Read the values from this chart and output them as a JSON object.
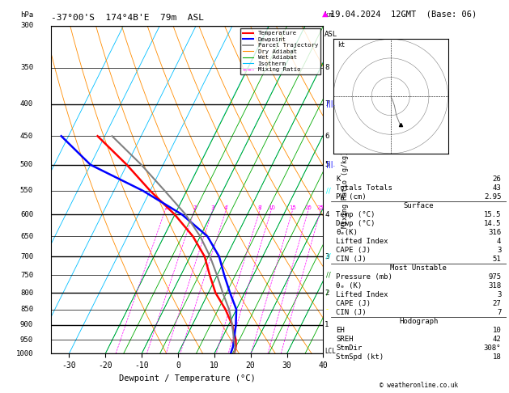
{
  "title_left": "-37°00'S  174°4B'E  79m  ASL",
  "title_right": "19.04.2024  12GMT  (Base: 06)",
  "xlabel": "Dewpoint / Temperature (°C)",
  "pressure_levels": [
    300,
    350,
    400,
    450,
    500,
    550,
    600,
    650,
    700,
    750,
    800,
    850,
    900,
    950,
    1000
  ],
  "temp_ticks": [
    -30,
    -20,
    -10,
    0,
    10,
    20,
    30,
    40
  ],
  "km_ticks": [
    1,
    2,
    3,
    4,
    5,
    6,
    7,
    8
  ],
  "km_pressures": [
    900,
    800,
    700,
    600,
    500,
    450,
    400,
    350
  ],
  "mixing_ratio_pressure": 590,
  "background_color": "#ffffff",
  "temp_profile_temp": [
    15.5,
    15.0,
    14.0,
    11.0,
    7.0,
    2.0,
    -2.0,
    -6.0,
    -12.0,
    -20.0,
    -30.0,
    -40.0,
    -52.0
  ],
  "temp_profile_pres": [
    1000,
    975,
    950,
    900,
    850,
    800,
    750,
    700,
    650,
    600,
    550,
    500,
    450
  ],
  "dewp_profile_temp": [
    14.5,
    14.2,
    13.5,
    12.0,
    10.0,
    6.0,
    2.0,
    -2.0,
    -8.0,
    -18.0,
    -32.0,
    -50.0,
    -62.0
  ],
  "dewp_profile_pres": [
    1000,
    975,
    950,
    900,
    850,
    800,
    750,
    700,
    650,
    600,
    550,
    500,
    450
  ],
  "parcel_temp": [
    15.5,
    14.8,
    13.5,
    11.0,
    8.0,
    4.0,
    0.0,
    -4.5,
    -10.0,
    -17.0,
    -26.0,
    -36.0,
    -48.0
  ],
  "parcel_pres": [
    1000,
    975,
    950,
    900,
    850,
    800,
    750,
    700,
    650,
    600,
    550,
    500,
    450
  ],
  "lcl_pressure": 990,
  "color_temp": "#ff0000",
  "color_dewp": "#0000ff",
  "color_parcel": "#808080",
  "color_dry_adiabat": "#ff8c00",
  "color_wet_adiabat": "#00aa00",
  "color_isotherm": "#00bfff",
  "color_mixing": "#ff00ff",
  "stats": {
    "K": 26,
    "Totals_Totals": 43,
    "PW_cm": 2.95,
    "Surface_Temp": 15.5,
    "Surface_Dewp": 14.5,
    "Surface_theta_e": 316,
    "Surface_LI": 4,
    "Surface_CAPE": 3,
    "Surface_CIN": 51,
    "MU_Pressure": 975,
    "MU_theta_e": 318,
    "MU_LI": 3,
    "MU_CAPE": 27,
    "MU_CIN": 7,
    "EH": 10,
    "SREH": 42,
    "StmDir": 308,
    "StmSpd": 18
  }
}
